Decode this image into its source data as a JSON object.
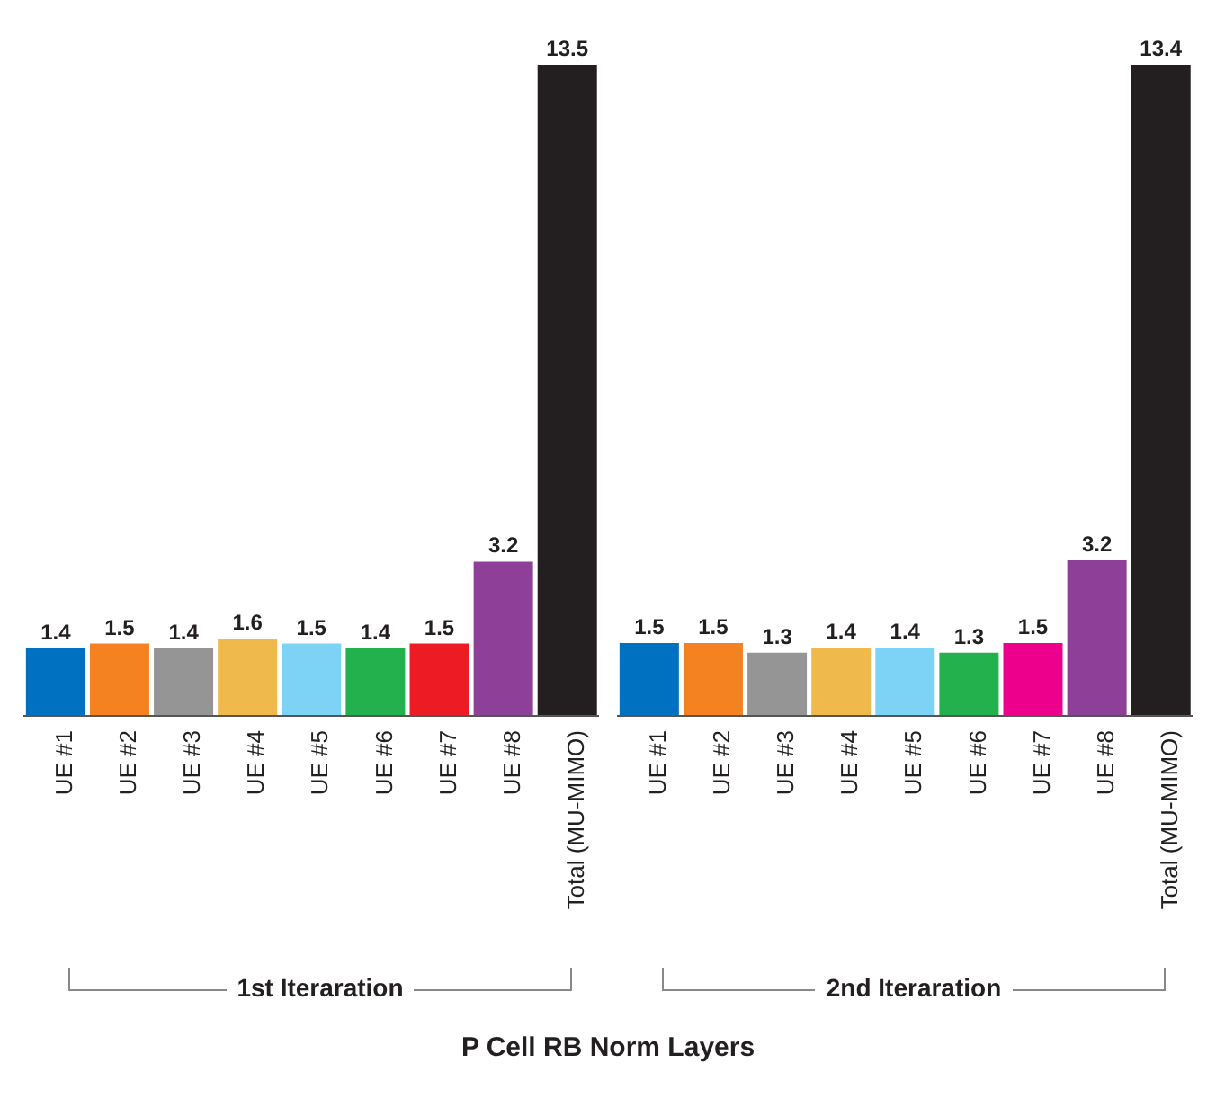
{
  "chart_data": [
    {
      "type": "bar",
      "title": "P Cell RB Norm Layers",
      "xlabel": "1st Iteraration",
      "categories": [
        "UE #1",
        "UE #2",
        "UE #3",
        "UE #4",
        "UE #5",
        "UE #6",
        "UE #7",
        "UE #8",
        "Total (MU-MIMO)"
      ],
      "values": [
        1.4,
        1.5,
        1.4,
        1.6,
        1.5,
        1.4,
        1.5,
        3.2,
        13.5
      ],
      "colors": [
        "#0070c0",
        "#f58220",
        "#959595",
        "#f0b94b",
        "#7dd3f5",
        "#22b14c",
        "#ed1c24",
        "#8e3f97",
        "#231f20"
      ],
      "data_labels": true,
      "tick_labels": "x",
      "legend": false
    },
    {
      "type": "bar",
      "xlabel": "2nd Iteraration",
      "categories": [
        "UE #1",
        "UE #2",
        "UE #3",
        "UE #4",
        "UE #5",
        "UE #6",
        "UE #7",
        "UE #8",
        "Total (MU-MIMO)"
      ],
      "values": [
        1.5,
        1.5,
        1.3,
        1.4,
        1.4,
        1.3,
        1.5,
        3.2,
        13.4
      ],
      "colors": [
        "#0070c0",
        "#f58220",
        "#959595",
        "#f0b94b",
        "#7dd3f5",
        "#22b14c",
        "#ec008c",
        "#8e3f97",
        "#231f20"
      ],
      "data_labels": true,
      "tick_labels": "x",
      "legend": false
    }
  ]
}
